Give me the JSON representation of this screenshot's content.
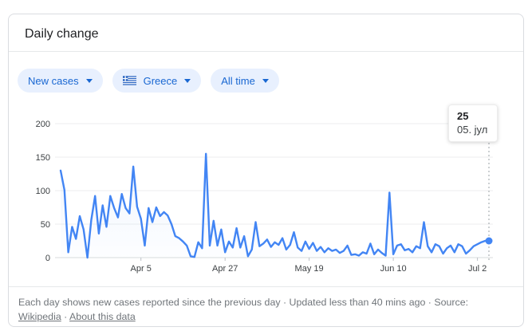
{
  "card": {
    "title": "Daily change",
    "filters": [
      {
        "label": "New cases"
      },
      {
        "label": "Greece",
        "flag_icon": "greece-flag-icon"
      },
      {
        "label": "All time"
      }
    ],
    "footer": {
      "segments": [
        {
          "type": "text",
          "text": "Each day shows new cases reported since the previous day · Updated less than 40 mins ago  ·  Source: "
        },
        {
          "type": "link",
          "text": "Wikipedia",
          "name": "wikipedia-link"
        },
        {
          "type": "text",
          "text": " · "
        },
        {
          "type": "link",
          "text": "About this data",
          "name": "about-this-data-link"
        }
      ]
    }
  },
  "chart_data": {
    "type": "line",
    "title": "Daily change",
    "series_name": "New cases",
    "region": "Greece",
    "line_color": "#4285f4",
    "grid": true,
    "y_ticks": [
      0,
      50,
      100,
      150,
      200
    ],
    "ylim": [
      0,
      212
    ],
    "x_ticks": [
      {
        "day_index": 21,
        "label": "Apr 5"
      },
      {
        "day_index": 43,
        "label": "Apr 27"
      },
      {
        "day_index": 65,
        "label": "May 19"
      },
      {
        "day_index": 87,
        "label": "Jun 10"
      },
      {
        "day_index": 109,
        "label": "Jul 2"
      }
    ],
    "values": [
      130,
      101,
      8,
      46,
      28,
      62,
      42,
      0,
      56,
      92,
      36,
      78,
      46,
      92,
      74,
      60,
      95,
      74,
      66,
      136,
      76,
      58,
      18,
      74,
      53,
      75,
      62,
      68,
      63,
      50,
      32,
      29,
      24,
      18,
      2,
      1,
      23,
      14,
      155,
      18,
      55,
      18,
      42,
      8,
      24,
      15,
      44,
      15,
      32,
      2,
      12,
      53,
      17,
      21,
      27,
      16,
      23,
      19,
      29,
      12,
      19,
      38,
      15,
      10,
      24,
      13,
      22,
      10,
      16,
      8,
      14,
      10,
      12,
      7,
      10,
      18,
      4,
      5,
      3,
      8,
      6,
      21,
      5,
      12,
      7,
      3,
      97,
      5,
      18,
      20,
      11,
      13,
      8,
      17,
      14,
      53,
      17,
      8,
      20,
      17,
      6,
      14,
      18,
      8,
      20,
      17,
      6,
      11,
      17,
      20,
      23,
      25,
      25
    ],
    "highlight": {
      "day_index": 112,
      "value": 25,
      "date_label": "05. јул"
    }
  }
}
